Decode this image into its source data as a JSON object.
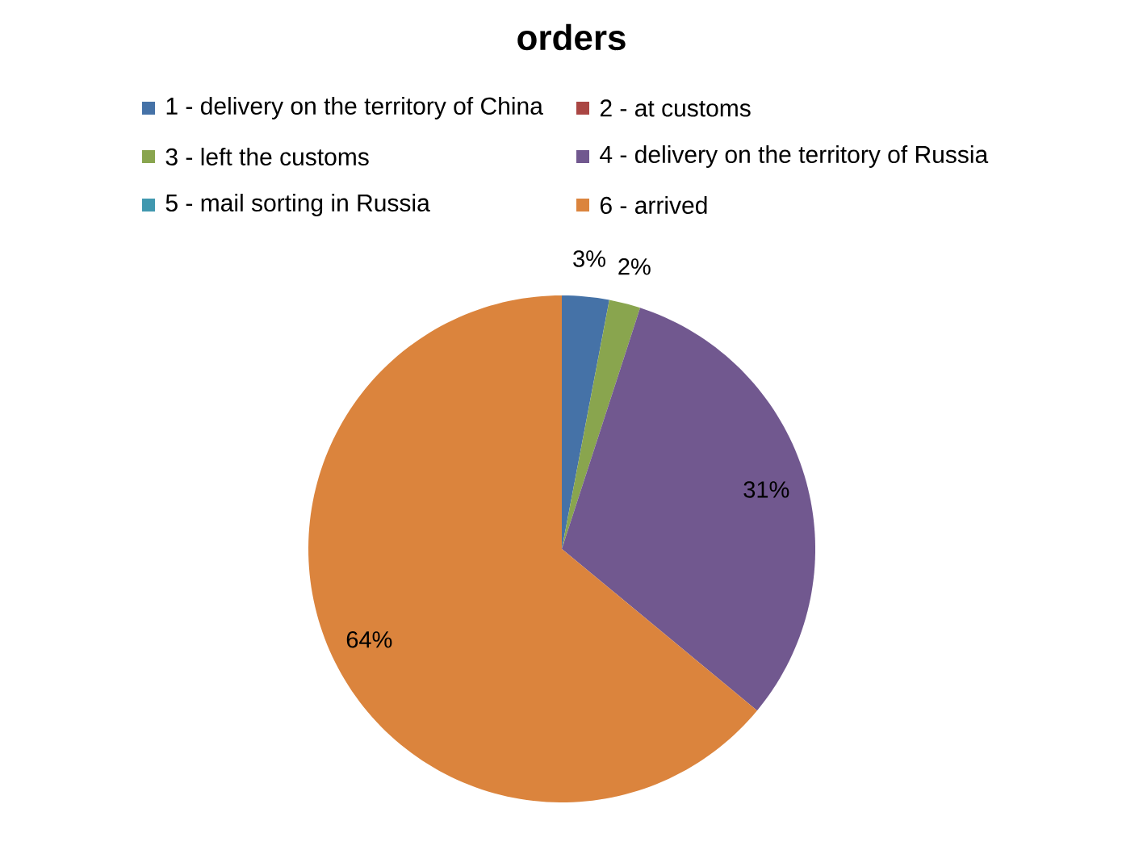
{
  "chart_data": {
    "type": "pie",
    "title": "orders",
    "categories": [
      "1 - delivery on the territory of China",
      "2 - at customs",
      "3 - left the customs",
      "4 - delivery on the territory of Russia",
      "5 - mail sorting in Russia",
      "6 - arrived"
    ],
    "values": [
      3,
      0,
      2,
      31,
      0,
      64
    ],
    "colors": [
      "#4572a7",
      "#aa4643",
      "#89a54e",
      "#71588f",
      "#4198af",
      "#db843d"
    ],
    "value_labels": [
      "3%",
      null,
      "2%",
      "31%",
      null,
      "64%"
    ],
    "legend": "top"
  }
}
